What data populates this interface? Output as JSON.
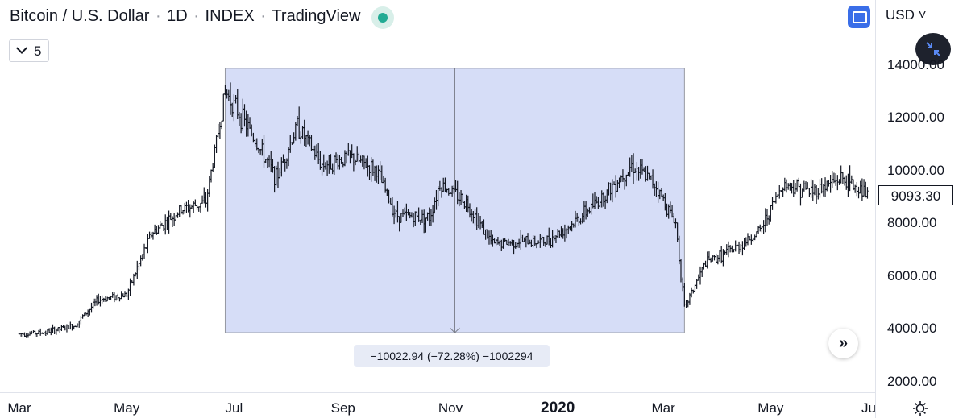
{
  "header": {
    "symbol": "Bitcoin / U.S. Dollar",
    "interval": "1D",
    "exchange": "INDEX",
    "source": "TradingView",
    "currency": "USD",
    "interval_button": "5"
  },
  "measure": {
    "text": "−10022.94 (−72.28%) −1002294",
    "start_price": 13868,
    "end_price": 3845,
    "start_month": "2019-06-26",
    "end_month": "2020-03-13"
  },
  "current_price": "9093.30",
  "colors": {
    "accent": "#3a6ee8",
    "measure_fill": "#d6ddf7",
    "status": "#22ab94",
    "candle": "#131722"
  },
  "icons": [
    "status-dot-icon",
    "chevron-down-icon",
    "fullscreen-icon",
    "collapse-icon",
    "double-chevron-right-icon",
    "gear-icon"
  ],
  "chart_data": {
    "type": "line",
    "subtype": "candlestick",
    "ylim": [
      1500,
      15000
    ],
    "y_ticks": [
      "14000.00",
      "12000.00",
      "10000.00",
      "8000.00",
      "6000.00",
      "4000.00",
      "2000.00"
    ],
    "x_ticks": [
      "Mar",
      "May",
      "Jul",
      "Sep",
      "Nov",
      "2020",
      "Mar",
      "May",
      "Ju"
    ],
    "grid": false,
    "series": [
      {
        "x": [
          "2019-03-01",
          "2019-03-15",
          "2019-04-01",
          "2019-04-15",
          "2019-05-01",
          "2019-05-15",
          "2019-06-01",
          "2019-06-15",
          "2019-06-26",
          "2019-07-10",
          "2019-07-25",
          "2019-08-06",
          "2019-08-20",
          "2019-09-05",
          "2019-09-20",
          "2019-10-01",
          "2019-10-20",
          "2019-10-26",
          "2019-11-10",
          "2019-11-25",
          "2019-12-10",
          "2019-12-25",
          "2020-01-10",
          "2020-01-25",
          "2020-02-12",
          "2020-02-25",
          "2020-03-08",
          "2020-03-13",
          "2020-03-25",
          "2020-04-10",
          "2020-04-25",
          "2020-05-08",
          "2020-05-25",
          "2020-06-10",
          "2020-06-25"
        ],
        "y": [
          3800,
          3850,
          4100,
          5100,
          5300,
          7600,
          8500,
          8800,
          13000,
          11500,
          9700,
          11700,
          10200,
          10500,
          10000,
          8300,
          8200,
          9500,
          8800,
          7200,
          7300,
          7300,
          8000,
          8900,
          10200,
          9500,
          8000,
          4800,
          6500,
          7000,
          7700,
          9500,
          9200,
          9700,
          9100
        ]
      }
    ]
  }
}
